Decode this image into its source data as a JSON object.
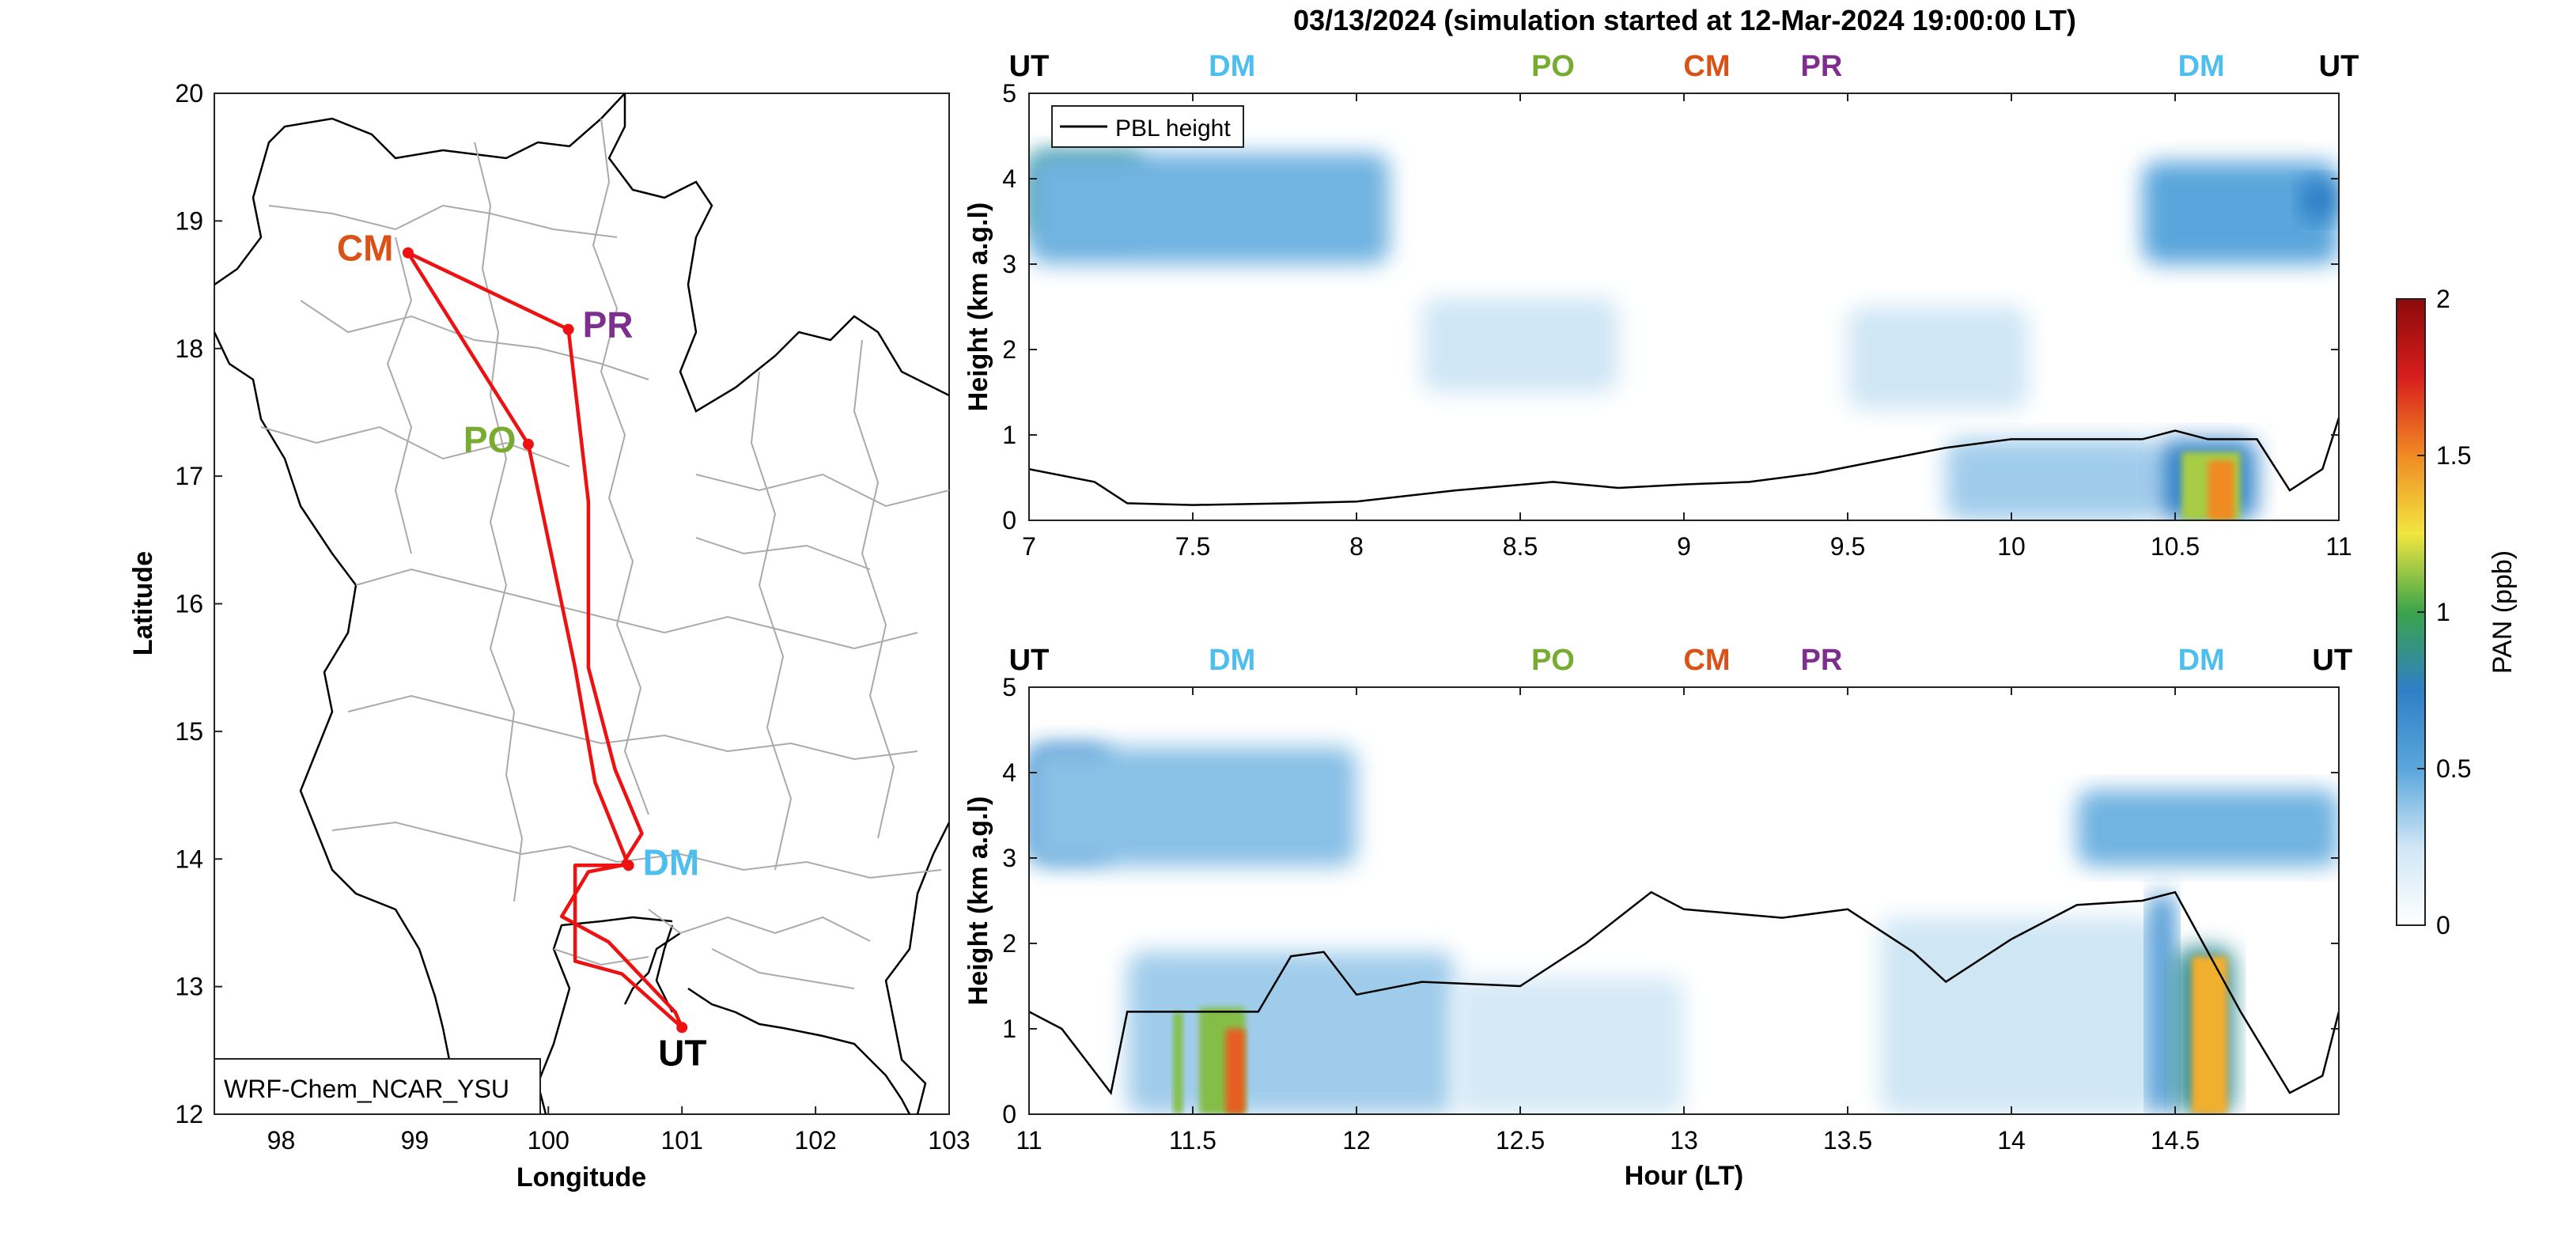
{
  "title": "03/13/2024 (simulation started at 12-Mar-2024 19:00:00 LT)",
  "colors": {
    "flight_track": "#ee1111",
    "CM": "#d95319",
    "PR": "#7e2f8e",
    "PO": "#77ac30",
    "DM": "#4dbeee",
    "UT": "#000000",
    "pbl_line": "#000000",
    "colormap_stops": [
      "#ffffff",
      "#cfe6f5",
      "#5aa6dc",
      "#2f7fc6",
      "#3aa44a",
      "#f2e640",
      "#f08a24",
      "#d81e1e",
      "#8b0a0a"
    ]
  },
  "chart_data": [
    {
      "type": "map",
      "xlabel": "Longitude",
      "ylabel": "Latitude",
      "xlim": [
        97.5,
        103
      ],
      "ylim": [
        12,
        20
      ],
      "xticks": [
        "98",
        "99",
        "100",
        "101",
        "102",
        "103"
      ],
      "yticks": [
        "12",
        "13",
        "14",
        "15",
        "16",
        "17",
        "18",
        "19",
        "20"
      ],
      "annotation": "WRF-Chem_NCAR_YSU",
      "sites": [
        {
          "code": "CM",
          "lon": 98.95,
          "lat": 18.75
        },
        {
          "code": "PR",
          "lon": 100.15,
          "lat": 18.15
        },
        {
          "code": "PO",
          "lon": 99.85,
          "lat": 17.25
        },
        {
          "code": "DM",
          "lon": 100.6,
          "lat": 13.95
        },
        {
          "code": "UT",
          "lon": 101.0,
          "lat": 12.68
        }
      ],
      "flight_track": [
        [
          101.0,
          12.68
        ],
        [
          100.55,
          13.1
        ],
        [
          100.2,
          13.2
        ],
        [
          100.2,
          13.95
        ],
        [
          100.6,
          13.95
        ],
        [
          100.35,
          14.6
        ],
        [
          100.2,
          15.5
        ],
        [
          99.85,
          17.25
        ],
        [
          98.95,
          18.75
        ],
        [
          100.15,
          18.15
        ],
        [
          100.3,
          16.8
        ],
        [
          100.3,
          15.5
        ],
        [
          100.5,
          14.7
        ],
        [
          100.7,
          14.2
        ],
        [
          100.55,
          13.95
        ],
        [
          100.3,
          13.9
        ],
        [
          100.1,
          13.55
        ],
        [
          100.45,
          13.35
        ],
        [
          100.95,
          12.8
        ],
        [
          101.0,
          12.68
        ]
      ]
    },
    {
      "type": "heatmap",
      "panel": "top",
      "xlabel": "",
      "ylabel": "Height (km a.g.l)",
      "xlim": [
        7,
        11
      ],
      "ylim": [
        0,
        5
      ],
      "xticks": [
        "7",
        "7.5",
        "8",
        "8.5",
        "9",
        "9.5",
        "10",
        "10.5",
        "11"
      ],
      "yticks": [
        "0",
        "1",
        "2",
        "3",
        "4",
        "5"
      ],
      "legend": "PBL height",
      "site_labels": [
        {
          "code": "UT",
          "x": 7.0
        },
        {
          "code": "DM",
          "x": 7.62
        },
        {
          "code": "PO",
          "x": 8.6
        },
        {
          "code": "CM",
          "x": 9.07
        },
        {
          "code": "PR",
          "x": 9.42
        },
        {
          "code": "DM",
          "x": 10.58
        },
        {
          "code": "UT",
          "x": 11.0
        }
      ],
      "pbl_height": {
        "x": [
          7.0,
          7.2,
          7.3,
          7.5,
          7.8,
          8.0,
          8.3,
          8.6,
          8.8,
          9.0,
          9.2,
          9.4,
          9.6,
          9.8,
          10.0,
          10.2,
          10.4,
          10.5,
          10.6,
          10.75,
          10.85,
          10.95,
          11.0
        ],
        "y": [
          0.6,
          0.45,
          0.2,
          0.18,
          0.2,
          0.22,
          0.35,
          0.45,
          0.38,
          0.42,
          0.45,
          0.55,
          0.7,
          0.85,
          0.95,
          0.95,
          0.95,
          1.05,
          0.95,
          0.95,
          0.35,
          0.6,
          1.2
        ]
      },
      "features": [
        {
          "x": [
            7.0,
            7.35
          ],
          "y": [
            3.3,
            4.3
          ],
          "value": 0.9
        },
        {
          "x": [
            7.0,
            8.1
          ],
          "y": [
            3.0,
            4.3
          ],
          "value": 0.45
        },
        {
          "x": [
            10.4,
            11.0
          ],
          "y": [
            3.0,
            4.2
          ],
          "value": 0.5
        },
        {
          "x": [
            10.88,
            11.0
          ],
          "y": [
            3.5,
            4.0
          ],
          "value": 0.75
        },
        {
          "x": [
            8.2,
            8.8
          ],
          "y": [
            1.5,
            2.6
          ],
          "value": 0.25
        },
        {
          "x": [
            9.5,
            10.05
          ],
          "y": [
            1.3,
            2.5
          ],
          "value": 0.25
        },
        {
          "x": [
            9.8,
            10.45
          ],
          "y": [
            0.0,
            0.95
          ],
          "value": 0.35
        },
        {
          "x": [
            10.45,
            10.75
          ],
          "y": [
            0.0,
            0.95
          ],
          "value": 0.7
        },
        {
          "x": [
            10.52,
            10.7
          ],
          "y": [
            0.0,
            0.8
          ],
          "value": 1.15
        },
        {
          "x": [
            10.6,
            10.68
          ],
          "y": [
            0.0,
            0.7
          ],
          "value": 1.5
        }
      ]
    },
    {
      "type": "heatmap",
      "panel": "bottom",
      "xlabel": "Hour (LT)",
      "ylabel": "Height (km a.g.l)",
      "xlim": [
        11,
        15
      ],
      "ylim": [
        0,
        5
      ],
      "xticks": [
        "11",
        "11.5",
        "12",
        "12.5",
        "13",
        "13.5",
        "14",
        "14.5"
      ],
      "yticks": [
        "0",
        "1",
        "2",
        "3",
        "4",
        "5"
      ],
      "site_labels": [
        {
          "code": "UT",
          "x": 11.0
        },
        {
          "code": "DM",
          "x": 11.62
        },
        {
          "code": "PO",
          "x": 12.6
        },
        {
          "code": "CM",
          "x": 13.07
        },
        {
          "code": "PR",
          "x": 13.42
        },
        {
          "code": "DM",
          "x": 14.58
        },
        {
          "code": "UT",
          "x": 14.98
        }
      ],
      "pbl_height": {
        "x": [
          11.0,
          11.1,
          11.25,
          11.3,
          11.45,
          11.7,
          11.8,
          11.9,
          12.0,
          12.2,
          12.5,
          12.7,
          12.9,
          13.0,
          13.3,
          13.5,
          13.7,
          13.8,
          14.0,
          14.2,
          14.4,
          14.5,
          14.7,
          14.85,
          14.95,
          15.0
        ],
        "y": [
          1.2,
          1.0,
          0.25,
          1.2,
          1.2,
          1.2,
          1.85,
          1.9,
          1.4,
          1.55,
          1.5,
          2.0,
          2.6,
          2.4,
          2.3,
          2.4,
          1.9,
          1.55,
          2.05,
          2.45,
          2.5,
          2.6,
          1.2,
          0.25,
          0.45,
          1.2
        ]
      },
      "features": [
        {
          "x": [
            11.0,
            11.25
          ],
          "y": [
            3.0,
            4.3
          ],
          "value": 0.75
        },
        {
          "x": [
            11.0,
            12.0
          ],
          "y": [
            2.9,
            4.3
          ],
          "value": 0.4
        },
        {
          "x": [
            14.2,
            15.0
          ],
          "y": [
            2.9,
            3.8
          ],
          "value": 0.45
        },
        {
          "x": [
            11.3,
            12.3
          ],
          "y": [
            0.0,
            1.9
          ],
          "value": 0.35
        },
        {
          "x": [
            12.3,
            13.0
          ],
          "y": [
            0.0,
            1.6
          ],
          "value": 0.22
        },
        {
          "x": [
            13.6,
            14.45
          ],
          "y": [
            0.0,
            2.3
          ],
          "value": 0.25
        },
        {
          "x": [
            11.44,
            11.47
          ],
          "y": [
            0.0,
            1.2
          ],
          "value": 1.1
        },
        {
          "x": [
            11.52,
            11.66
          ],
          "y": [
            0.0,
            1.25
          ],
          "value": 1.1
        },
        {
          "x": [
            11.6,
            11.66
          ],
          "y": [
            0.0,
            1.0
          ],
          "value": 1.6
        },
        {
          "x": [
            14.42,
            14.5
          ],
          "y": [
            0.0,
            2.6
          ],
          "value": 0.6
        },
        {
          "x": [
            14.5,
            14.68
          ],
          "y": [
            0.0,
            1.95
          ],
          "value": 0.85
        },
        {
          "x": [
            14.55,
            14.66
          ],
          "y": [
            0.0,
            1.85
          ],
          "value": 1.4
        }
      ]
    },
    {
      "type": "colorbar",
      "label": "PAN (ppb)",
      "ticks": [
        "0",
        "0.5",
        "1",
        "1.5",
        "2"
      ],
      "range": [
        0,
        2
      ]
    }
  ]
}
